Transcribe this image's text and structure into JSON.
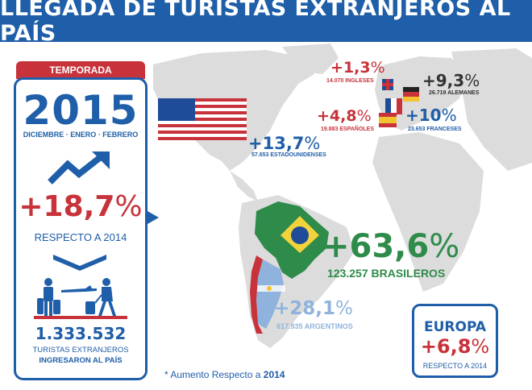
{
  "header": {
    "title": "LLEGADA DE TURISTAS EXTRANJEROS AL PAÍS"
  },
  "season": {
    "tab_label": "TEMPORADA",
    "year": "2015",
    "months": "DICIEMBRE · ENERO · FEBRERO",
    "total_growth": "+18,7",
    "percent_symbol": "%",
    "respecto": "RESPECTO A 2014",
    "tourists_count": "1.333.532",
    "tourists_label_1": "TURISTAS EXTRANJEROS",
    "tourists_label_2": "INGRESARON AL PAÍS"
  },
  "countries": {
    "usa": {
      "pct": "+13,7",
      "sub": "57.653 ESTADOUNIDENSES"
    },
    "uk": {
      "pct": "+1,3",
      "sub": "14.070 INGLESES"
    },
    "germany": {
      "pct": "+9,3",
      "sub": "26.719 ALEMANES"
    },
    "spain": {
      "pct": "+4,8",
      "sub": "19.883 ESPAÑOLES"
    },
    "france": {
      "pct": "+10",
      "sub": "23.653 FRANCESES"
    },
    "brazil": {
      "pct": "+63,6",
      "sub": "123.257 BRASILEROS"
    },
    "argentina": {
      "pct": "+28,1",
      "sub": "617.935 ARGENTINOS"
    }
  },
  "europe": {
    "title": "EUROPA",
    "pct": "+6,8",
    "sub": "RESPECTO A 2014"
  },
  "footnote": {
    "prefix": "* Aumento Respecto a",
    "year": "2014"
  },
  "colors": {
    "blue": "#1f5ea8",
    "red": "#c8333b",
    "green": "#2e8b4a",
    "light_blue": "#8fb3dc",
    "map_gray": "#d9d9d9"
  }
}
